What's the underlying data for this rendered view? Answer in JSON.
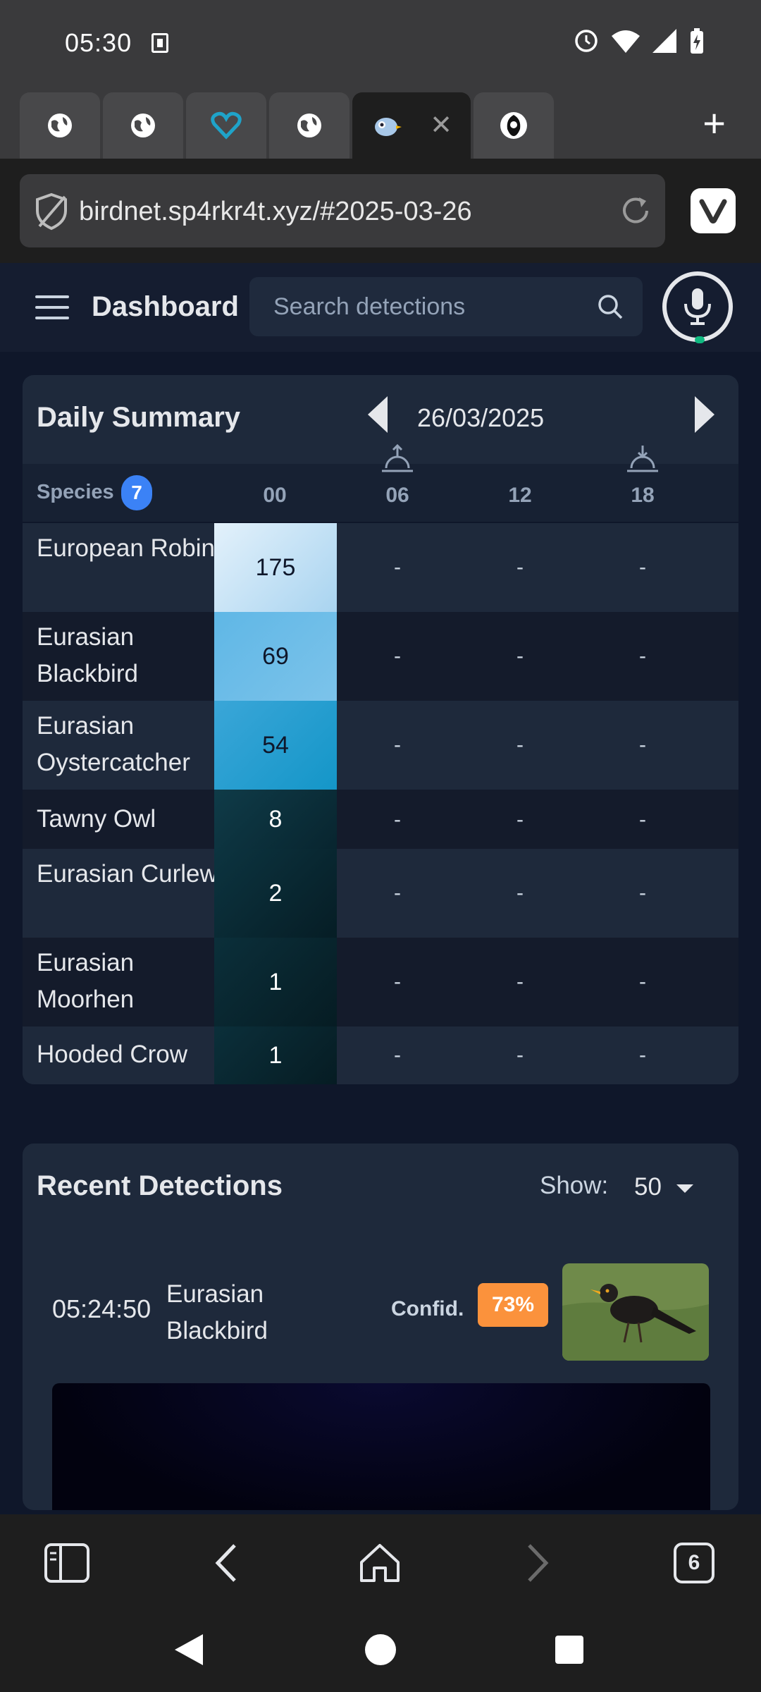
{
  "status_bar": {
    "time": "05:30"
  },
  "browser": {
    "tabs": [
      {
        "icon": "globe-icon"
      },
      {
        "icon": "globe-icon"
      },
      {
        "icon": "heart-icon"
      },
      {
        "icon": "globe-icon"
      },
      {
        "icon": "birdnet-icon",
        "active": true
      },
      {
        "icon": "profile-icon"
      }
    ],
    "url": "birdnet.sp4rkr4t.xyz/#2025-03-26",
    "tab_count": "6"
  },
  "header": {
    "title": "Dashboard",
    "search_placeholder": "Search detections"
  },
  "daily_summary": {
    "title": "Daily Summary",
    "date": "26/03/2025",
    "species_label": "Species",
    "species_count": "7",
    "hours": [
      "00",
      "06",
      "12",
      "18"
    ],
    "rows": [
      {
        "name": "European Robin",
        "h00": "175",
        "h06": "-",
        "h12": "-",
        "h18": "-"
      },
      {
        "name": "Eurasian Blackbird",
        "h00": "69",
        "h06": "-",
        "h12": "-",
        "h18": "-"
      },
      {
        "name": "Eurasian Oystercatcher",
        "h00": "54",
        "h06": "-",
        "h12": "-",
        "h18": "-"
      },
      {
        "name": "Tawny Owl",
        "h00": "8",
        "h06": "-",
        "h12": "-",
        "h18": "-"
      },
      {
        "name": "Eurasian Curlew",
        "h00": "2",
        "h06": "-",
        "h12": "-",
        "h18": "-"
      },
      {
        "name": "Eurasian Moorhen",
        "h00": "1",
        "h06": "-",
        "h12": "-",
        "h18": "-"
      },
      {
        "name": "Hooded Crow",
        "h00": "1",
        "h06": "-",
        "h12": "-",
        "h18": "-"
      }
    ]
  },
  "recent_detections": {
    "title": "Recent Detections",
    "show_label": "Show:",
    "show_value": "50",
    "items": [
      {
        "time": "05:24:50",
        "species": "Eurasian Blackbird",
        "confidence_label": "Confid.",
        "confidence": "73%"
      }
    ]
  },
  "colors": {
    "accent": "#3b82f6",
    "confidence_badge": "#fb923c",
    "heat_high": "#cfe8f7",
    "heat_mid": "#4ab0e0",
    "heat_low": "#0c2f3b"
  }
}
